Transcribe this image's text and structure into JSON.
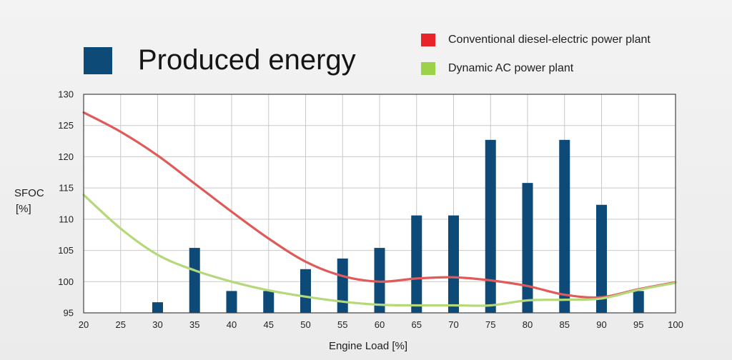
{
  "chart_data": {
    "type": "bar+line",
    "title": "Produced energy",
    "xlabel": "Engine Load [%]",
    "ylabel_line1": "SFOC",
    "ylabel_line2": "[%]",
    "xlim": [
      20,
      100
    ],
    "ylim": [
      95,
      130
    ],
    "x_ticks": [
      20,
      25,
      30,
      35,
      40,
      45,
      50,
      55,
      60,
      65,
      70,
      75,
      80,
      85,
      90,
      95,
      100
    ],
    "y_ticks": [
      95,
      100,
      105,
      110,
      115,
      120,
      125,
      130
    ],
    "grid": true,
    "bars": {
      "name": "Produced energy",
      "color": "#0e4a78",
      "x": [
        30,
        35,
        40,
        45,
        50,
        55,
        60,
        65,
        70,
        75,
        80,
        85,
        90,
        95
      ],
      "values": [
        96.7,
        105.4,
        98.5,
        98.5,
        102.0,
        103.7,
        105.4,
        110.6,
        110.6,
        122.7,
        115.8,
        122.7,
        112.3,
        98.5
      ]
    },
    "series": [
      {
        "name": "Conventional diesel-electric power plant",
        "color": "#e05a5a",
        "legend_color": "#e8242a",
        "x": [
          20,
          25,
          30,
          35,
          40,
          45,
          50,
          55,
          60,
          65,
          70,
          75,
          80,
          85,
          90,
          95,
          100
        ],
        "values": [
          127.1,
          124.0,
          120.2,
          115.7,
          111.2,
          106.9,
          103.2,
          100.9,
          100.0,
          100.5,
          100.7,
          100.2,
          99.3,
          97.9,
          97.5,
          98.8,
          99.9
        ]
      },
      {
        "name": "Dynamic AC power plant",
        "color": "#b5d97a",
        "legend_color": "#9bd24a",
        "x": [
          20,
          25,
          30,
          35,
          40,
          45,
          50,
          55,
          60,
          65,
          70,
          75,
          80,
          85,
          90,
          95,
          100
        ],
        "values": [
          113.9,
          108.5,
          104.3,
          101.8,
          100.0,
          98.6,
          97.6,
          96.8,
          96.3,
          96.2,
          96.2,
          96.2,
          97.0,
          97.1,
          97.3,
          98.7,
          99.8
        ]
      }
    ],
    "legend_placement": "top-right"
  }
}
